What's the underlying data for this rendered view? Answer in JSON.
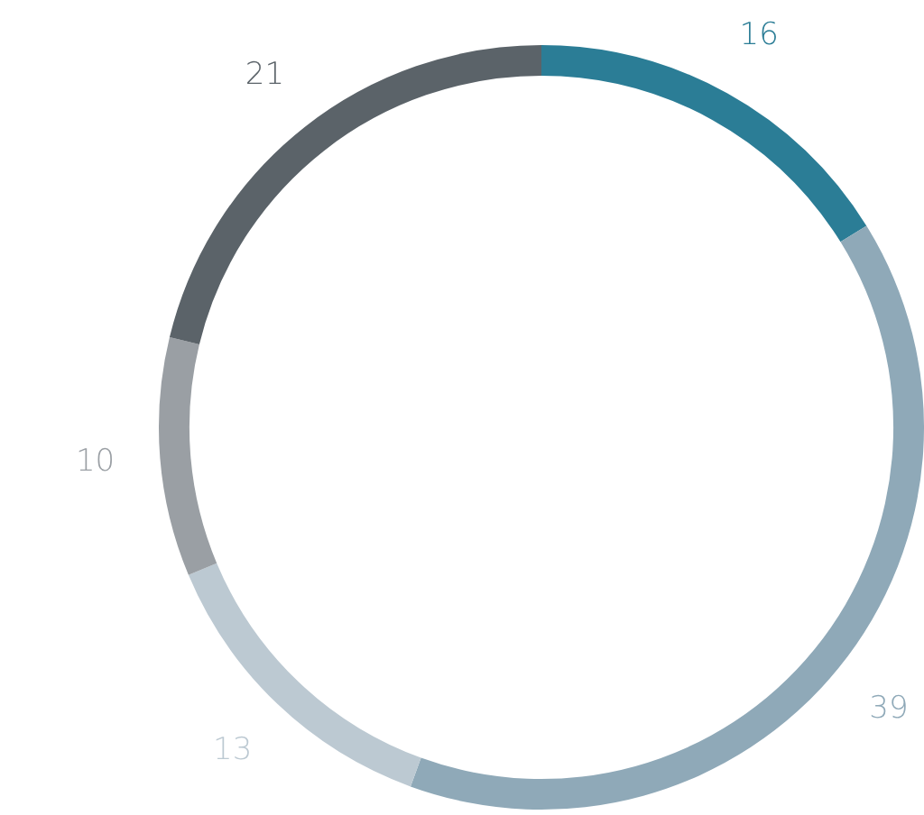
{
  "chart_data": {
    "type": "donut",
    "categories": [
      null,
      null,
      null,
      null,
      null
    ],
    "values": [
      16,
      39,
      13,
      10,
      21
    ],
    "colors": [
      "#2b7d96",
      "#8fa9b8",
      "#bcc9d2",
      "#9a9fa4",
      "#5b6369"
    ],
    "data_labels": true,
    "legend": false
  }
}
